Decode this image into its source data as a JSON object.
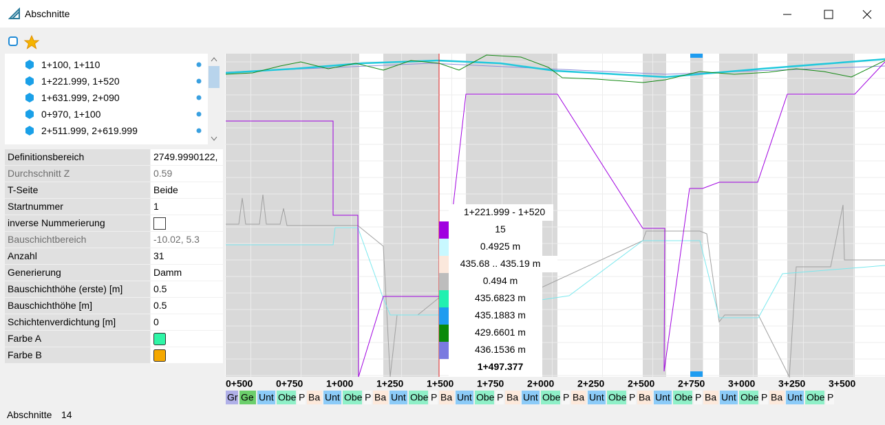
{
  "window": {
    "title": "Abschnitte"
  },
  "list": {
    "items": [
      "1+100, 1+110",
      "1+221.999, 1+520",
      "1+631.999, 2+090",
      "0+970, 1+100",
      "2+511.999, 2+619.999"
    ]
  },
  "properties": {
    "rows": [
      {
        "name": "Definitionsbereich",
        "value": "2749.9990122,"
      },
      {
        "name": "Durchschnitt Z",
        "value": "0.59",
        "readonly": true
      },
      {
        "name": "T-Seite",
        "value": "Beide"
      },
      {
        "name": "Startnummer",
        "value": "1"
      },
      {
        "name": "inverse Nummerierung",
        "checked": false
      },
      {
        "name": "Bauschichtbereich",
        "value": "-10.02, 5.3",
        "readonly": true
      },
      {
        "name": "Anzahl",
        "value": "31"
      },
      {
        "name": "Generierung",
        "value": "Damm"
      },
      {
        "name": "Bauschichthöhe (erste) [m]",
        "value": "0.5"
      },
      {
        "name": "Bauschichthöhe [m]",
        "value": "0.5"
      },
      {
        "name": "Schichtenverdichtung [m]",
        "value": "0"
      },
      {
        "name": "Farbe A",
        "color": "#2ef5a6"
      },
      {
        "name": "Farbe B",
        "color": "#f5a800"
      }
    ]
  },
  "profile": {
    "stations": [
      "0+500",
      "0+750",
      "1+000",
      "1+250",
      "1+500",
      "1+750",
      "2+000",
      "2+250",
      "2+500",
      "2+750",
      "3+000",
      "3+250",
      "3+500"
    ],
    "tooltip": [
      {
        "text": "1+221.999 - 1+520"
      },
      {
        "text": "15",
        "color": "#a000e0"
      },
      {
        "text": "0.4925 m",
        "color": "#c8f8ff"
      },
      {
        "text": "435.68 .. 435.19 m",
        "color": "#fbe8dc"
      },
      {
        "text": "0.494 m",
        "color": "#bdbdbd"
      },
      {
        "text": "435.6823 m",
        "color": "#22f0b0"
      },
      {
        "text": "435.1883 m",
        "color": "#1e9cf0"
      },
      {
        "text": "429.6601 m",
        "color": "#0a8a0a"
      },
      {
        "text": "436.1536 m",
        "color": "#7a7ae0"
      },
      {
        "text": "1+497.377",
        "bold": true
      }
    ],
    "strip": [
      {
        "text": "Gr",
        "color": "#b0b0e8"
      },
      {
        "text": "Ge",
        "color": "#6ccf6c"
      },
      {
        "text": "Unt",
        "color": "#8ccbf8"
      },
      {
        "text": "Obe",
        "color": "#8ff0c8"
      },
      {
        "text": "P",
        "color": "#f7f7f7"
      },
      {
        "text": "Ba",
        "color": "#fde9db"
      },
      {
        "text": "Unt",
        "color": "#8ccbf8"
      },
      {
        "text": "Obe",
        "color": "#8ff0c8"
      },
      {
        "text": "P",
        "color": "#f7f7f7"
      },
      {
        "text": "Ba",
        "color": "#fde9db"
      },
      {
        "text": "Unt",
        "color": "#8ccbf8"
      },
      {
        "text": "Obe",
        "color": "#8ff0c8"
      },
      {
        "text": "P",
        "color": "#f7f7f7"
      },
      {
        "text": "Ba",
        "color": "#fde9db"
      },
      {
        "text": "Unt",
        "color": "#8ccbf8"
      },
      {
        "text": "Obe",
        "color": "#8ff0c8"
      },
      {
        "text": "P",
        "color": "#f7f7f7"
      },
      {
        "text": "Ba",
        "color": "#fde9db"
      },
      {
        "text": "Unt",
        "color": "#8ccbf8"
      },
      {
        "text": "Obe",
        "color": "#8ff0c8"
      },
      {
        "text": "P",
        "color": "#f7f7f7"
      },
      {
        "text": "Ba",
        "color": "#fde9db"
      },
      {
        "text": "Unt",
        "color": "#8ccbf8"
      },
      {
        "text": "Obe",
        "color": "#8ff0c8"
      },
      {
        "text": "P",
        "color": "#f7f7f7"
      },
      {
        "text": "Ba",
        "color": "#fde9db"
      },
      {
        "text": "Unt",
        "color": "#8ccbf8"
      },
      {
        "text": "Obe",
        "color": "#8ff0c8"
      },
      {
        "text": "P",
        "color": "#f7f7f7"
      },
      {
        "text": "Ba",
        "color": "#fde9db"
      },
      {
        "text": "Unt",
        "color": "#8ccbf8"
      },
      {
        "text": "Obe",
        "color": "#8ff0c8"
      },
      {
        "text": "P",
        "color": "#f7f7f7"
      },
      {
        "text": "Ba",
        "color": "#fde9db"
      },
      {
        "text": "Unt",
        "color": "#8ccbf8"
      },
      {
        "text": "Obe",
        "color": "#8ff0c8"
      },
      {
        "text": "P",
        "color": "#f7f7f7"
      }
    ]
  },
  "status": {
    "label": "Abschnitte",
    "count": "14"
  }
}
